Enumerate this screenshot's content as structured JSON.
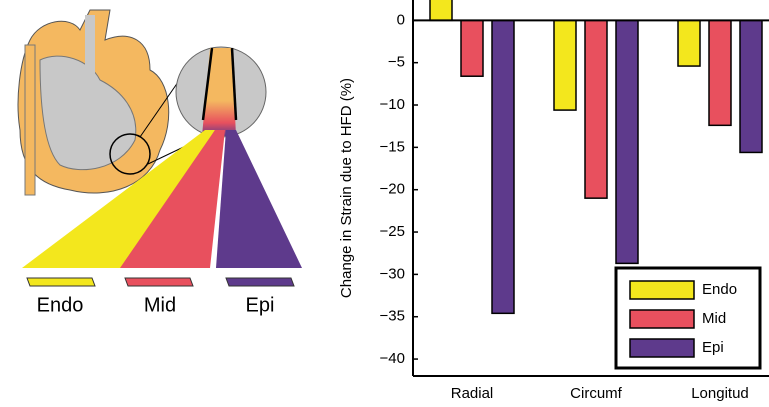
{
  "illustration": {
    "labels": [
      "Endo",
      "Mid",
      "Epi"
    ]
  },
  "chart_data": {
    "type": "bar",
    "y_label": "Change in Strain due to HFD (%)",
    "categories": [
      "Radial",
      "Circumf",
      "Longitud"
    ],
    "series": [
      {
        "name": "Endo",
        "color": "#f3e71d",
        "values": [
          2.5,
          -10.6,
          -5.4
        ]
      },
      {
        "name": "Mid",
        "color": "#e8505e",
        "values": [
          -6.6,
          -21.0,
          -12.4
        ]
      },
      {
        "name": "Epi",
        "color": "#5e3a8c",
        "values": [
          -34.6,
          -28.7,
          -15.6
        ]
      }
    ],
    "ylim": [
      -42,
      2.4
    ],
    "yticks": [
      0,
      {
        "value": -5,
        "label": "−5"
      },
      {
        "value": -10,
        "label": "−10"
      },
      {
        "value": -15,
        "label": "−15"
      },
      {
        "value": -20,
        "label": "−20"
      },
      {
        "value": -25,
        "label": "−25"
      },
      {
        "value": -30,
        "label": "−30"
      },
      {
        "value": -35,
        "label": "−35"
      },
      {
        "value": -40,
        "label": "−40"
      }
    ],
    "legend": "lower right"
  }
}
